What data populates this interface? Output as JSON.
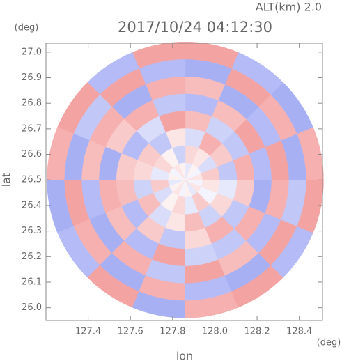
{
  "chart_data": {
    "type": "polar-field",
    "title": "2017/10/24 04:12:30",
    "subtitle": "ALT(km) 2.0",
    "xlabel": "lon",
    "ylabel": "lat",
    "xunit": "(deg)",
    "yunit": "(deg)",
    "xlim": [
      127.2,
      128.51
    ],
    "ylim": [
      25.95,
      27.035
    ],
    "xticks": [
      127.4,
      127.6,
      127.8,
      {
        "value": 128,
        "label": "128.0"
      },
      128.2,
      128.4
    ],
    "yticks": [
      {
        "value": 26,
        "label": "26.0"
      },
      26.1,
      26.2,
      26.3,
      26.4,
      26.5,
      26.6,
      26.7,
      26.8,
      26.9,
      {
        "value": 27,
        "label": "27.0"
      }
    ],
    "center": [
      127.86,
      26.5
    ],
    "range_lon": 0.655,
    "range_lat": 0.54,
    "positive_color": "#f4a3a3",
    "negative_color": "#a8b0f4",
    "field": [
      [
        0.2,
        -0.1,
        0.1,
        -0.2,
        0.1,
        0.2,
        -0.1,
        0.1,
        -0.2,
        0.1,
        0.2,
        -0.1,
        0.1,
        -0.2,
        0.2,
        -0.1
      ],
      [
        0.4,
        -0.3,
        0.2,
        0.3,
        -0.4,
        0.1,
        0.3,
        -0.2,
        0.4,
        -0.3,
        0.1,
        0.3,
        -0.2,
        0.4,
        -0.1,
        0.2
      ],
      [
        -0.5,
        0.4,
        0.6,
        -0.3,
        0.2,
        -0.5,
        0.4,
        0.3,
        -0.4,
        0.5,
        -0.3,
        0.2,
        0.5,
        -0.4,
        0.3,
        -0.2
      ],
      [
        0.6,
        -0.5,
        -0.4,
        0.5,
        0.7,
        -0.3,
        -0.6,
        0.4,
        0.5,
        -0.6,
        0.4,
        -0.5,
        0.3,
        0.6,
        -0.5,
        0.4
      ],
      [
        -0.6,
        0.7,
        0.5,
        -0.6,
        -0.5,
        0.6,
        0.4,
        -0.7,
        0.6,
        0.5,
        -0.6,
        0.7,
        -0.4,
        -0.5,
        0.6,
        -0.7
      ],
      [
        0.7,
        -0.6,
        -0.7,
        0.5,
        0.6,
        -0.7,
        0.6,
        0.5,
        -0.6,
        -0.7,
        0.6,
        -0.5,
        0.7,
        0.5,
        -0.6,
        0.6
      ],
      [
        -0.7,
        0.6,
        0.7,
        -0.7,
        -0.6,
        0.7,
        -0.5,
        -0.7,
        0.7,
        0.6,
        -0.7,
        0.6,
        -0.6,
        -0.7,
        0.7,
        -0.5
      ],
      [
        0.6,
        -0.7,
        -0.6,
        0.7,
        0.7,
        -0.6,
        0.7,
        0.6,
        -0.7,
        -0.6,
        0.7,
        -0.7,
        0.6,
        0.7,
        -0.6,
        0.7
      ]
    ]
  }
}
